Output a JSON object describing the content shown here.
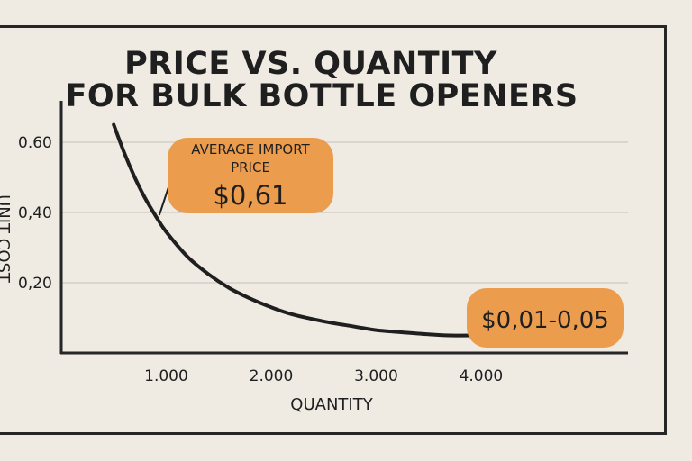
{
  "chart_data": {
    "type": "line",
    "title_lines": [
      "PRICE VS. QUANTITY",
      "FOR BULK BOTTLE OPENERS"
    ],
    "xlabel": "QUANTITY",
    "ylabel": "UNIT COST",
    "x_ticks": [
      {
        "value": 1000,
        "label": "1.000"
      },
      {
        "value": 2000,
        "label": "2.000"
      },
      {
        "value": 3000,
        "label": "3.000"
      },
      {
        "value": 4000,
        "label": "4.000"
      }
    ],
    "y_ticks": [
      {
        "value": 0.2,
        "label": "0,20"
      },
      {
        "value": 0.4,
        "label": "0,40"
      },
      {
        "value": 0.6,
        "label": "0.60"
      }
    ],
    "xlim": [
      0,
      5400
    ],
    "ylim": [
      0,
      0.8
    ],
    "grid": true,
    "series": [
      {
        "x": [
          500,
          600,
          700,
          800,
          900,
          1000,
          1200,
          1400,
          1600,
          1800,
          2000,
          2200,
          2500,
          2800,
          3000,
          3200,
          3500,
          3700,
          4000,
          4100
        ],
        "y": [
          0.65,
          0.57,
          0.5,
          0.44,
          0.39,
          0.345,
          0.275,
          0.225,
          0.185,
          0.155,
          0.13,
          0.11,
          0.09,
          0.075,
          0.065,
          0.06,
          0.053,
          0.05,
          0.05,
          0.05
        ]
      }
    ],
    "annotations": [
      {
        "lines": [
          "AVERAGE IMPORT",
          "PRICE"
        ],
        "value_text": "$0,61",
        "x": 900,
        "y": 0.39
      },
      {
        "lines": [],
        "value_text": "$0,01-0,05",
        "x": 3700,
        "y": 0.05
      }
    ]
  },
  "colors": {
    "background": "#efebe3",
    "curve": "#1f1f1f",
    "callout_fill": "#eb9c4d",
    "grid": "#d3cfc7",
    "axis": "#262626"
  }
}
